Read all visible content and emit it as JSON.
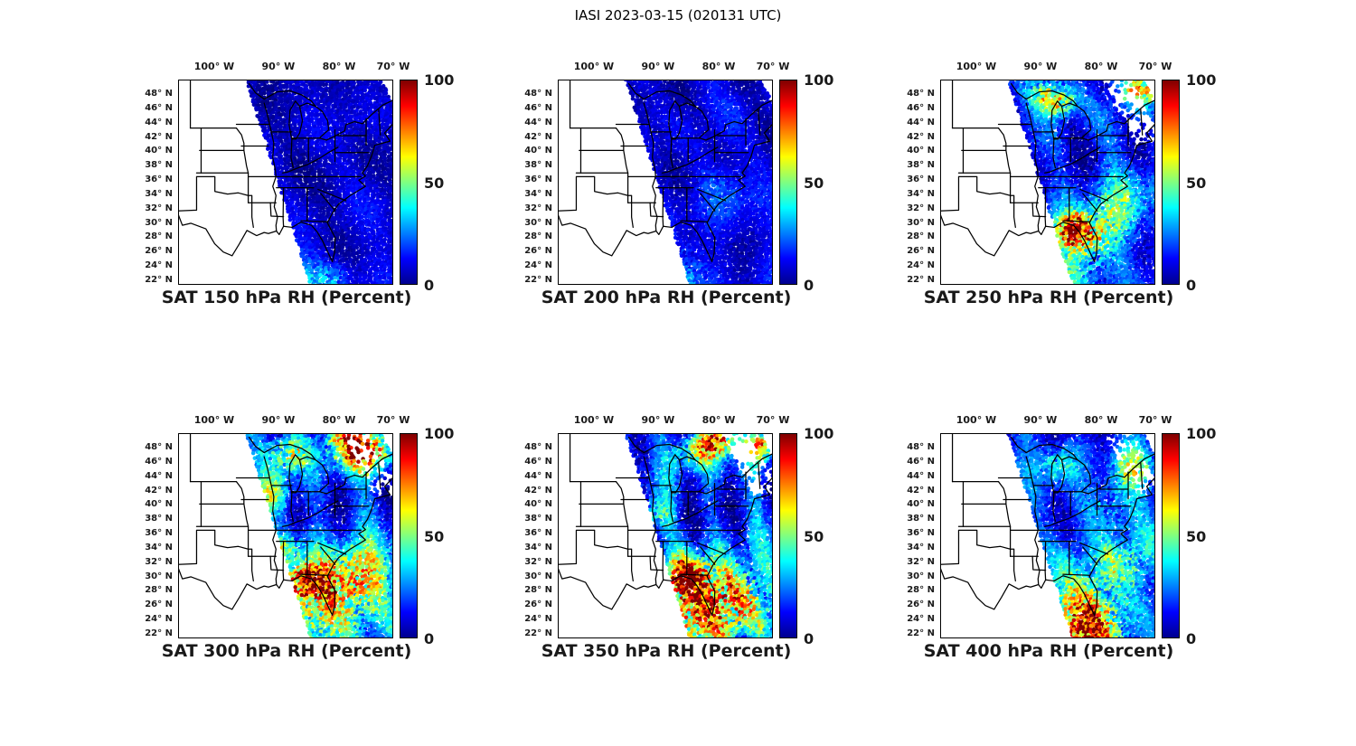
{
  "figure": {
    "title": "IASI 2023-03-15 (020131 UTC)"
  },
  "axes": {
    "lon_labels": [
      "100° W",
      "90° W",
      "80° W",
      "70° W"
    ],
    "lat_labels": [
      "48° N",
      "46° N",
      "44° N",
      "42° N",
      "40° N",
      "38° N",
      "36° N",
      "34° N",
      "32° N",
      "30° N",
      "28° N",
      "26° N",
      "24° N",
      "22° N"
    ],
    "colorbar_labels": [
      "100",
      "50",
      "0"
    ]
  },
  "chart_data": {
    "type": "heatmap",
    "subtype": "satellite-swath-map",
    "figure_title": "IASI 2023-03-15 (020131 UTC)",
    "satellite": "IASI",
    "date": "2023-03-15",
    "time_utc": "020131",
    "variable": "Relative Humidity",
    "units": "Percent",
    "colormap": "jet",
    "colorbar_range": [
      0,
      100
    ],
    "colorbar_ticks": [
      0,
      50,
      100
    ],
    "lon_ticks_deg_west": [
      100,
      90,
      80,
      70
    ],
    "lat_ticks_deg_north": [
      48,
      46,
      44,
      42,
      40,
      38,
      36,
      34,
      32,
      30,
      28,
      26,
      24,
      22
    ],
    "region": "Eastern United States, approx 106W-70W, 22N-49N",
    "swath_note": "IASI overpass swath covers the eastern half of the domain; west of the swath edge (diagonal from ~94W at 49N to ~84W at 22N) there is no data (white map background).",
    "panels": [
      {
        "title": "SAT 150 hPa RH (Percent)",
        "level_hPa": 150,
        "pattern": "Nearly uniform very low RH 0-15% (dark blue) over the whole swath; a few 30-60% cyan/green speckles along the southern edge near 22-24N.",
        "render": {
          "base": 7,
          "broad": 4,
          "band": 3,
          "bf": 3,
          "spk": 6,
          "gap": 0,
          "blobs": [
            [
              0.55,
              1.0,
              0.1,
              28
            ],
            [
              0.72,
              0.98,
              0.06,
              20
            ]
          ]
        }
      },
      {
        "title": "SAT 200 hPa RH (Percent)",
        "level_hPa": 200,
        "pattern": "Mostly 0-20% (dark blue) with slightly more texture than 150 hPa; scattered 30-60% speckles near the southern swath edge around 22-24N.",
        "render": {
          "base": 8,
          "broad": 5,
          "band": 4,
          "bf": 3.5,
          "spk": 7,
          "gap": 0,
          "blobs": [
            [
              0.52,
              1.0,
              0.12,
              30
            ],
            [
              0.75,
              0.55,
              0.1,
              12
            ]
          ]
        }
      },
      {
        "title": "SAT 250 hPa RH (Percent)",
        "level_hPa": 250,
        "pattern": "Low RH background 5-30% with moist features: 60-100% (yellow-red) cluster over the Great Lakes ~44-47N, red cluster near the northeast corner ~47N 70W, strong 80-100% spot near Florida ~28-30N 83W, and 30-60% cyan bands over the western Atlantic.",
        "render": {
          "base": 11,
          "broad": 8,
          "band": 8,
          "bf": 4,
          "spk": 12,
          "gap": 0.75,
          "blobs": [
            [
              0.5,
              0.07,
              0.06,
              55
            ],
            [
              0.57,
              0.12,
              0.05,
              40
            ],
            [
              0.93,
              0.04,
              0.06,
              65
            ],
            [
              0.63,
              0.73,
              0.05,
              80
            ],
            [
              0.7,
              0.78,
              0.08,
              45
            ],
            [
              0.82,
              0.6,
              0.12,
              30
            ],
            [
              0.6,
              0.95,
              0.15,
              22
            ]
          ]
        }
      },
      {
        "title": "SAT 300 hPa RH (Percent)",
        "level_hPa": 300,
        "pattern": "More variable: 10-40% blues with diagonal moist striations; 60-100% yellow/red patches over the Great Lakes and New England ~44-48N; broad 50-90% orange/yellow region over Florida and adjacent Gulf/Atlantic ~24-30N.",
        "render": {
          "base": 14,
          "broad": 9,
          "band": 10,
          "bf": 4.5,
          "spk": 14,
          "gap": 0.55,
          "blobs": [
            [
              0.52,
              0.1,
              0.07,
              50
            ],
            [
              0.8,
              0.04,
              0.08,
              70
            ],
            [
              0.9,
              0.1,
              0.06,
              60
            ],
            [
              0.42,
              0.3,
              0.06,
              35
            ],
            [
              0.68,
              0.82,
              0.16,
              50
            ],
            [
              0.6,
              0.72,
              0.05,
              70
            ],
            [
              0.85,
              0.7,
              0.12,
              40
            ],
            [
              0.5,
              0.55,
              0.05,
              30
            ]
          ]
        }
      },
      {
        "title": "SAT 350 hPa RH (Percent)",
        "level_hPa": 350,
        "pattern": "Similar to 300 hPa: diagonal 30-60% cyan bands through the swath, 80-100% red spots near 47-48N (Great Lakes / New England), strong 70-100% moist plume near Florida ~26-30N with surrounding 40-70% greens/yellows.",
        "render": {
          "base": 14,
          "broad": 9,
          "band": 12,
          "bf": 5,
          "spk": 14,
          "gap": 0.8,
          "blobs": [
            [
              0.74,
              0.04,
              0.06,
              75
            ],
            [
              0.62,
              0.1,
              0.06,
              45
            ],
            [
              0.95,
              0.06,
              0.05,
              60
            ],
            [
              0.6,
              0.7,
              0.06,
              75
            ],
            [
              0.7,
              0.8,
              0.14,
              45
            ],
            [
              0.85,
              0.83,
              0.12,
              40
            ],
            [
              0.45,
              0.4,
              0.05,
              30
            ],
            [
              0.55,
              0.92,
              0.12,
              35
            ]
          ]
        }
      },
      {
        "title": "SAT 400 hPa RH (Percent)",
        "level_hPa": 400,
        "pattern": "Moderately variable: 10-40% blue background, 40-80% yellow/orange speckled region south of ~28N over Florida and the Atlantic, scattered 40-60% patches along the east coast and near the northeast corner.",
        "render": {
          "base": 13,
          "broad": 8,
          "band": 9,
          "bf": 4,
          "spk": 12,
          "gap": 0.45,
          "blobs": [
            [
              0.6,
              0.9,
              0.14,
              50
            ],
            [
              0.72,
              0.95,
              0.1,
              45
            ],
            [
              0.85,
              0.65,
              0.12,
              35
            ],
            [
              0.9,
              0.18,
              0.07,
              40
            ],
            [
              0.55,
              0.15,
              0.06,
              30
            ],
            [
              0.78,
              0.35,
              0.08,
              25
            ]
          ]
        }
      }
    ]
  }
}
